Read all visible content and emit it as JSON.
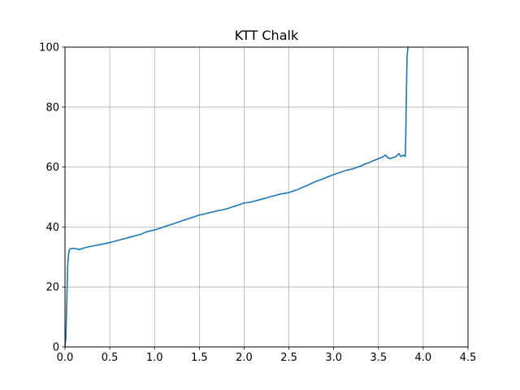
{
  "chart_data": {
    "type": "line",
    "title": "KTT Chalk",
    "xlabel": "",
    "ylabel": "",
    "xlim": [
      0.0,
      4.5
    ],
    "ylim": [
      0,
      100
    ],
    "x_ticks": [
      "0.0",
      "0.5",
      "1.0",
      "1.5",
      "2.0",
      "2.5",
      "3.0",
      "3.5",
      "4.0",
      "4.5"
    ],
    "y_ticks": [
      "0",
      "20",
      "40",
      "60",
      "80",
      "100"
    ],
    "grid": true,
    "legend": "none",
    "line_color": "#1f77b4",
    "series": [
      {
        "x": [
          0.0,
          0.01,
          0.02,
          0.03,
          0.04,
          0.05,
          0.07,
          0.1,
          0.13,
          0.16,
          0.2,
          0.25,
          0.3,
          0.35,
          0.4,
          0.45,
          0.5,
          0.55,
          0.6,
          0.65,
          0.7,
          0.75,
          0.8,
          0.85,
          0.9,
          0.95,
          1.0,
          1.05,
          1.1,
          1.15,
          1.2,
          1.25,
          1.3,
          1.35,
          1.4,
          1.45,
          1.5,
          1.55,
          1.6,
          1.65,
          1.7,
          1.75,
          1.8,
          1.85,
          1.9,
          1.95,
          2.0,
          2.05,
          2.1,
          2.15,
          2.2,
          2.25,
          2.3,
          2.35,
          2.4,
          2.45,
          2.5,
          2.55,
          2.6,
          2.65,
          2.7,
          2.75,
          2.8,
          2.85,
          2.9,
          2.95,
          3.0,
          3.05,
          3.1,
          3.15,
          3.2,
          3.25,
          3.3,
          3.35,
          3.4,
          3.45,
          3.5,
          3.55,
          3.58,
          3.6,
          3.63,
          3.65,
          3.7,
          3.73,
          3.75,
          3.78,
          3.8,
          3.805,
          3.81,
          3.815,
          3.82,
          3.83
        ],
        "y": [
          0,
          3,
          15,
          27,
          31,
          32.5,
          32.8,
          32.9,
          32.7,
          32.5,
          32.9,
          33.3,
          33.6,
          33.9,
          34.2,
          34.5,
          34.8,
          35.2,
          35.6,
          36.0,
          36.4,
          36.8,
          37.2,
          37.6,
          38.3,
          38.7,
          39.0,
          39.5,
          40.0,
          40.5,
          41.0,
          41.5,
          42.0,
          42.5,
          43.0,
          43.5,
          44.0,
          44.3,
          44.7,
          45.0,
          45.4,
          45.7,
          46.0,
          46.5,
          47.0,
          47.5,
          48.0,
          48.2,
          48.5,
          48.9,
          49.3,
          49.7,
          50.2,
          50.5,
          51.0,
          51.2,
          51.5,
          52.0,
          52.5,
          53.2,
          53.8,
          54.5,
          55.2,
          55.7,
          56.3,
          56.9,
          57.5,
          58.0,
          58.5,
          59.0,
          59.3,
          59.8,
          60.3,
          61.0,
          61.5,
          62.2,
          62.8,
          63.4,
          64.0,
          63.2,
          62.8,
          63.0,
          63.6,
          64.5,
          63.5,
          64.0,
          63.5,
          70,
          80,
          90,
          97,
          100
        ]
      }
    ]
  }
}
